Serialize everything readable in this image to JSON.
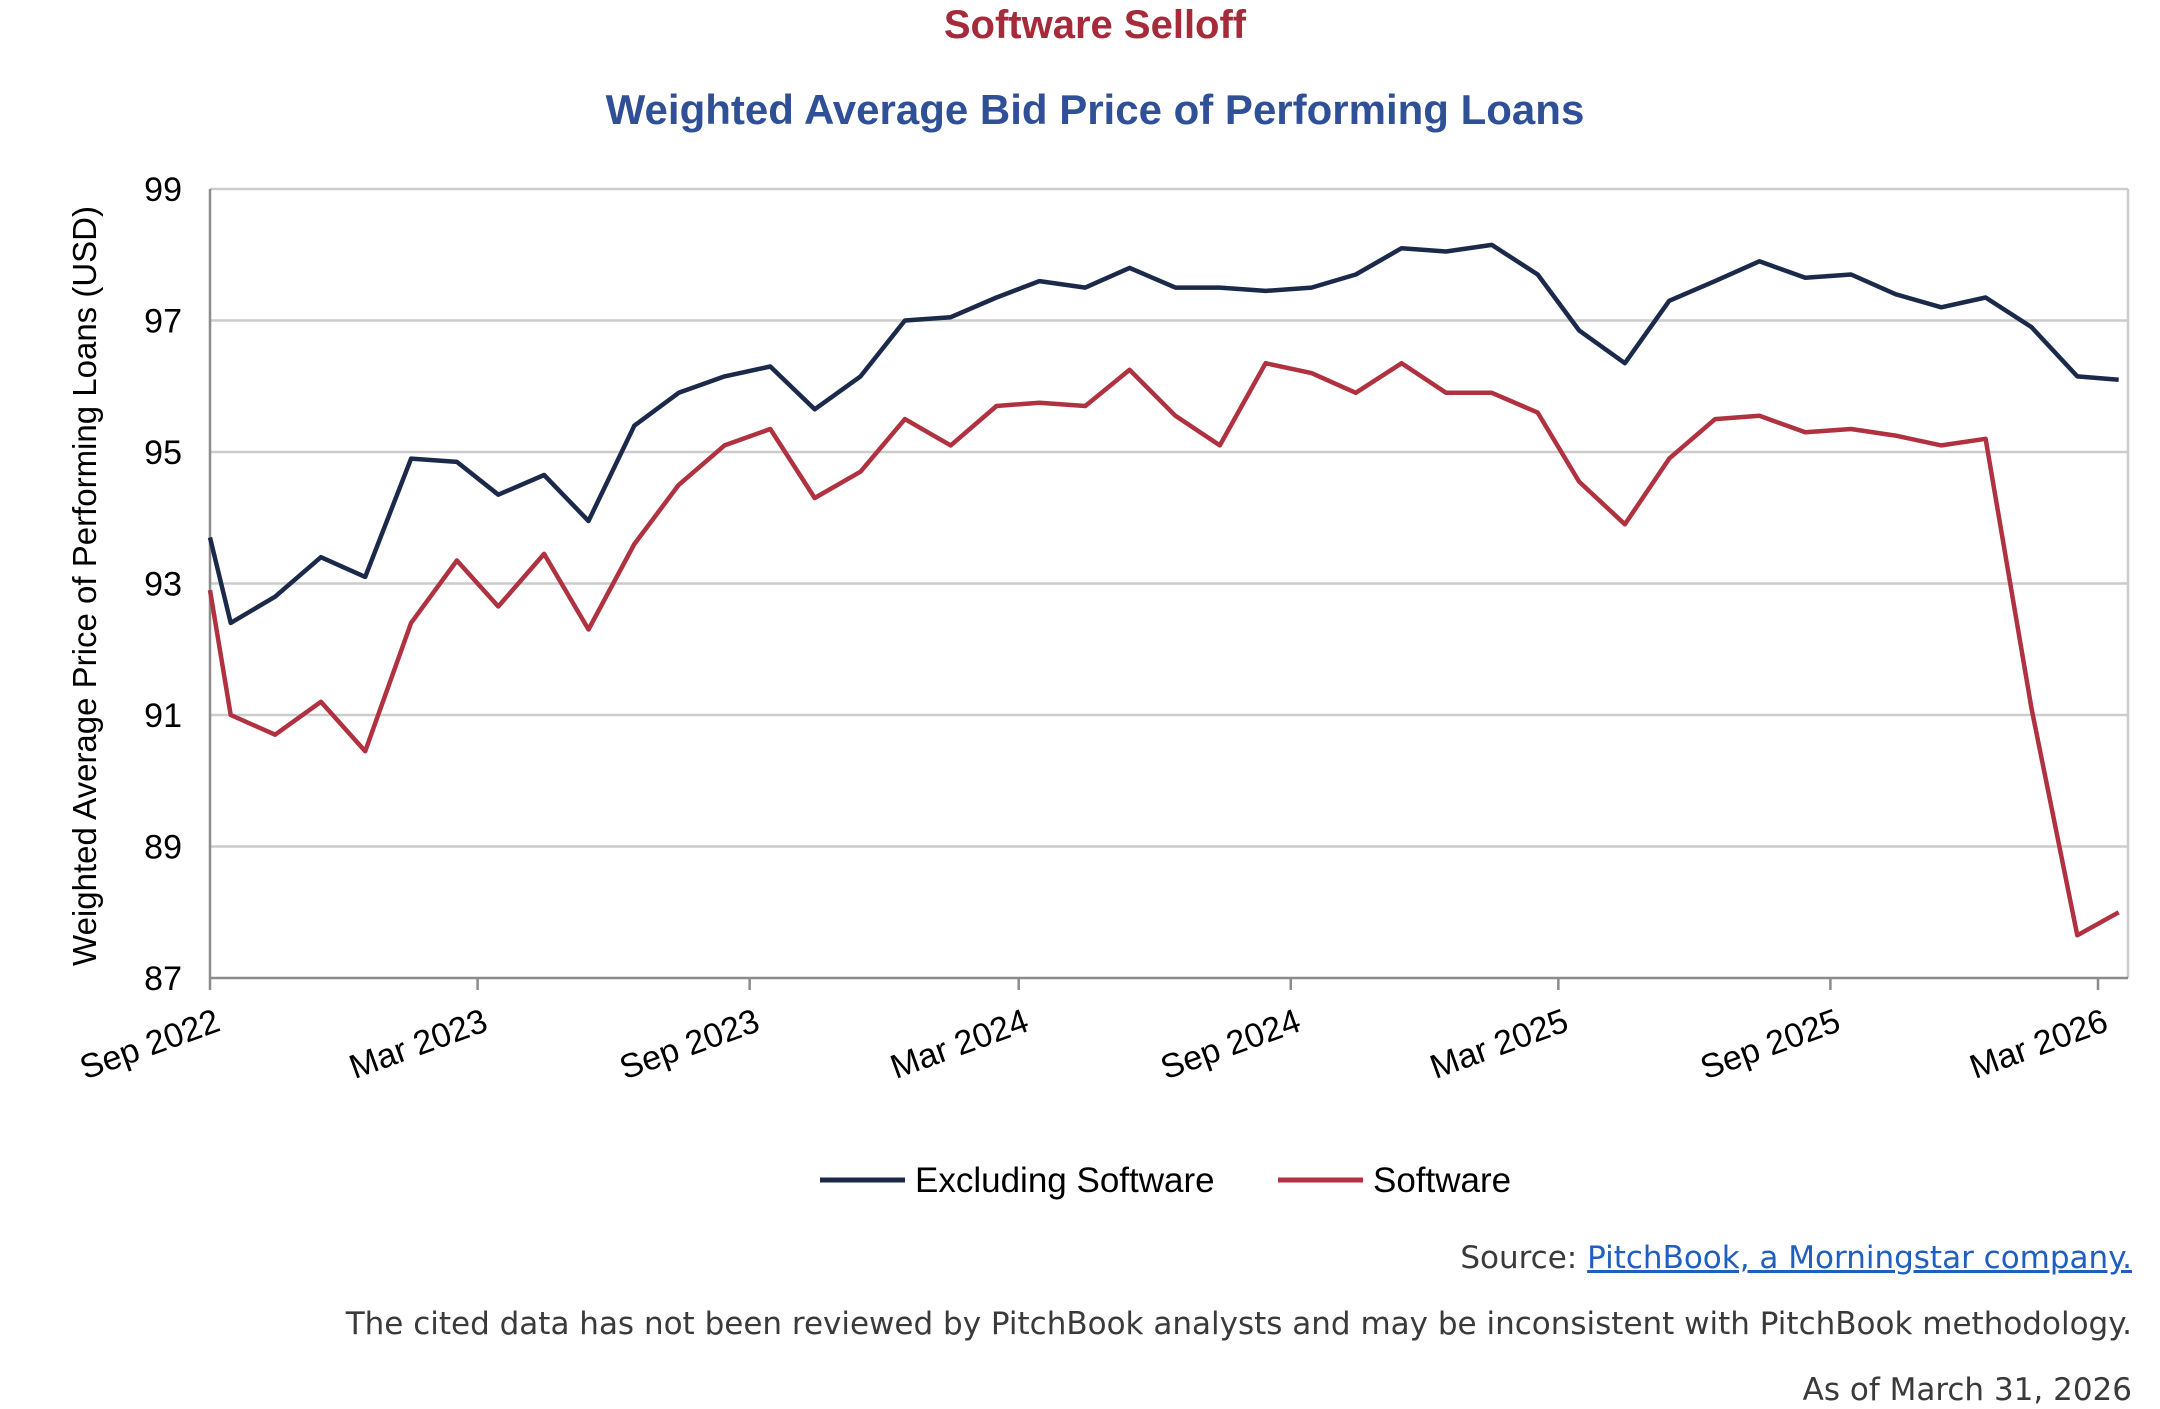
{
  "chart_data": {
    "type": "line",
    "title": "Software Selloff",
    "subtitle": "Weighted Average Bid Price of Performing Loans",
    "ylabel": "Weighted Average Price of Performing Loans (USD)",
    "xlabel": "",
    "ylim": [
      87,
      99
    ],
    "yticks": [
      "87",
      "89",
      "91",
      "93",
      "95",
      "97",
      "99"
    ],
    "x_tick_labels": [
      "Sep 2022",
      "Mar 2023",
      "Sep 2023",
      "Mar 2024",
      "Sep 2024",
      "Mar 2025",
      "Sep 2025",
      "Mar 2026"
    ],
    "x": [
      "2022-09-01",
      "2022-09-15",
      "2022-10-15",
      "2022-11-15",
      "2022-12-15",
      "2023-01-15",
      "2023-02-15",
      "2023-03-15",
      "2023-04-15",
      "2023-05-15",
      "2023-06-15",
      "2023-07-15",
      "2023-08-15",
      "2023-09-15",
      "2023-10-15",
      "2023-11-15",
      "2023-12-15",
      "2024-01-15",
      "2024-02-15",
      "2024-03-15",
      "2024-04-15",
      "2024-05-15",
      "2024-06-15",
      "2024-07-15",
      "2024-08-15",
      "2024-09-15",
      "2024-10-15",
      "2024-11-15",
      "2024-12-15",
      "2025-01-15",
      "2025-02-15",
      "2025-03-15",
      "2025-04-15",
      "2025-05-15",
      "2025-06-15",
      "2025-07-15",
      "2025-08-15",
      "2025-09-15",
      "2025-10-15",
      "2025-11-15",
      "2025-12-15",
      "2026-01-15",
      "2026-02-15",
      "2026-03-15"
    ],
    "series": [
      {
        "name": "Excluding Software",
        "color": "#1b2a4a",
        "values": [
          93.7,
          92.4,
          92.8,
          93.4,
          93.1,
          94.9,
          94.85,
          94.35,
          94.65,
          93.95,
          95.4,
          95.9,
          96.15,
          96.3,
          95.65,
          96.15,
          97.0,
          97.05,
          97.35,
          97.6,
          97.5,
          97.8,
          97.5,
          97.5,
          97.45,
          97.5,
          97.7,
          98.1,
          98.05,
          98.15,
          97.7,
          96.85,
          96.35,
          97.3,
          97.6,
          97.9,
          97.65,
          97.7,
          97.4,
          97.2,
          97.35,
          96.9,
          96.15,
          96.1
        ]
      },
      {
        "name": "Software",
        "color": "#b0313f",
        "values": [
          92.9,
          91.0,
          90.7,
          91.2,
          90.45,
          92.4,
          93.35,
          92.65,
          93.45,
          92.3,
          93.6,
          94.5,
          95.1,
          95.35,
          94.3,
          94.7,
          95.5,
          95.1,
          95.7,
          95.75,
          95.7,
          96.25,
          95.55,
          95.1,
          96.35,
          96.2,
          95.9,
          96.35,
          95.9,
          95.9,
          95.6,
          94.55,
          93.9,
          94.9,
          95.5,
          95.55,
          95.3,
          95.35,
          95.25,
          95.1,
          95.2,
          91.1,
          87.65,
          88.0
        ]
      }
    ],
    "grid": true,
    "legend_position": "bottom-center",
    "title_color": "#a52a3a",
    "subtitle_color": "#2f4f96"
  },
  "footer": {
    "source_prefix": "Source: ",
    "source_link": "PitchBook, a Morningstar company.",
    "disclaimer": "The cited data has not been reviewed by PitchBook analysts and may be inconsistent with PitchBook methodology.",
    "as_of": "As of March 31, 2026"
  }
}
